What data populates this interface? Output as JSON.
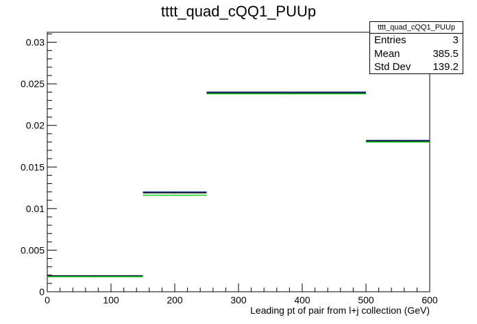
{
  "chart_data": {
    "type": "histogram",
    "title": "tttt_quad_cQQ1_PUUp",
    "xlabel": "Leading pt of pair from l+j collection (GeV)",
    "ylabel": "",
    "xlim": [
      0,
      600
    ],
    "ylim": [
      0,
      0.0312
    ],
    "x_ticks": [
      "0",
      "100",
      "200",
      "300",
      "400",
      "500",
      "600"
    ],
    "y_ticks": [
      "0",
      "0.005",
      "0.01",
      "0.015",
      "0.02",
      "0.025",
      "0.03"
    ],
    "bin_edges": [
      0,
      150,
      250,
      500,
      600
    ],
    "series": [
      {
        "color": "#000000",
        "values": [
          0.00192,
          0.0119,
          0.0239,
          0.0181
        ]
      },
      {
        "color": "#1f3a8f",
        "values": [
          0.00185,
          0.012,
          0.024,
          0.0182
        ]
      },
      {
        "color": "#22cc22",
        "values": [
          0.0018,
          0.0116,
          0.0238,
          0.018
        ]
      }
    ],
    "grid": false,
    "stats_box": {
      "name": "tttt_quad_cQQ1_PUUp",
      "rows": [
        {
          "label": "Entries",
          "value": "3"
        },
        {
          "label": "Mean",
          "value": "385.5"
        },
        {
          "label": "Std Dev",
          "value": "139.2"
        }
      ]
    }
  }
}
